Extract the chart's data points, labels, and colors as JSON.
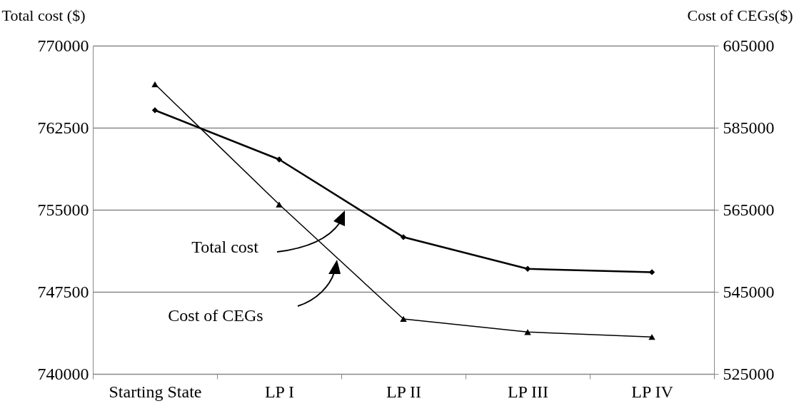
{
  "chart_data": {
    "type": "line",
    "ylabel": "Total cost ($)",
    "y2label": "Cost of CEGs($)",
    "categories": [
      "Starting State",
      "LP I",
      "LP II",
      "LP III",
      "LP IV"
    ],
    "series": [
      {
        "color": "#000000",
        "marker": "diamond",
        "values": [
          764100,
          759600,
          752500,
          749600,
          749300
        ]
      },
      {
        "color": "#000000",
        "marker": "triangle",
        "axis": "y2",
        "values": [
          595600,
          566300,
          538400,
          535200,
          534000
        ]
      }
    ],
    "ylim": [
      740000,
      770000
    ],
    "yticks": [
      740000,
      747500,
      755000,
      762500,
      770000
    ],
    "y2lim": [
      525000,
      605000
    ],
    "y2ticks": [
      525000,
      545000,
      565000,
      585000,
      605000
    ],
    "annotations": [
      "Total cost",
      "Cost of CEGs"
    ],
    "grid": "y",
    "line_style": "solid"
  }
}
